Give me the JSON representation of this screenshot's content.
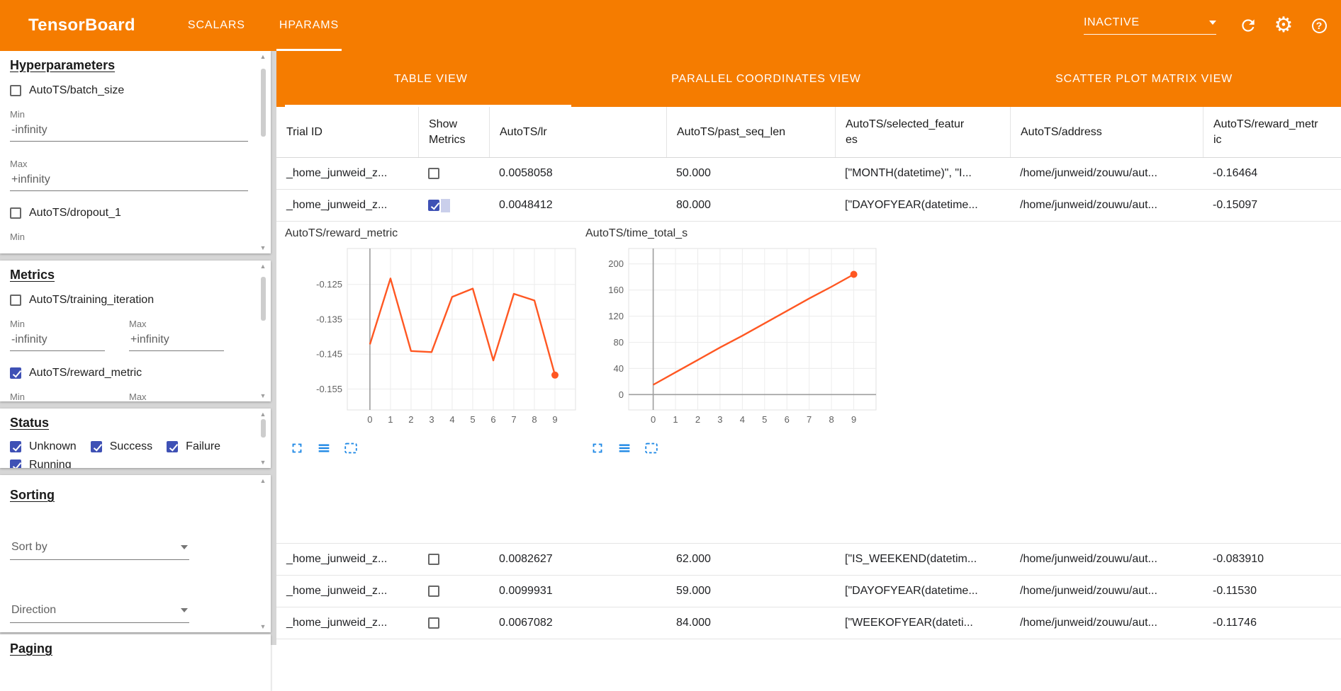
{
  "colors": {
    "accent_orange": "#f57c00",
    "chart_line": "#ff5722",
    "checkbox_checked": "#3f51b5",
    "toolbar_icon_blue": "#1e88e5"
  },
  "icons": {
    "settings": "⚙",
    "help": "?",
    "scroll_up": "▲",
    "scroll_down": "▼"
  },
  "header": {
    "title": "TensorBoard",
    "nav_tabs": [
      {
        "label": "SCALARS",
        "active": false
      },
      {
        "label": "HPARAMS",
        "active": true
      }
    ],
    "run_selector": "INACTIVE"
  },
  "sidebar": {
    "hyperparameters": {
      "heading": "Hyperparameters",
      "param1": {
        "label": "AutoTS/batch_size",
        "checked": false,
        "min_label": "Min",
        "min_value": "-infinity",
        "max_label": "Max",
        "max_value": "+infinity"
      },
      "param2": {
        "label": "AutoTS/dropout_1",
        "checked": false,
        "min_label": "Min"
      }
    },
    "metrics": {
      "heading": "Metrics",
      "metric1": {
        "label": "AutoTS/training_iteration",
        "checked": false,
        "min_label": "Min",
        "min_value": "-infinity",
        "max_label": "Max",
        "max_value": "+infinity"
      },
      "metric2": {
        "label": "AutoTS/reward_metric",
        "checked": true,
        "min_label": "Min",
        "max_label": "Max"
      }
    },
    "status": {
      "heading": "Status",
      "options": [
        {
          "label": "Unknown",
          "checked": true
        },
        {
          "label": "Success",
          "checked": true
        },
        {
          "label": "Failure",
          "checked": true
        },
        {
          "label": "Running",
          "checked": true
        }
      ]
    },
    "sorting": {
      "heading": "Sorting",
      "sort_by_placeholder": "Sort by",
      "direction_placeholder": "Direction"
    },
    "paging": {
      "heading": "Paging"
    }
  },
  "view_tabs": [
    {
      "label": "TABLE VIEW",
      "active": true
    },
    {
      "label": "PARALLEL COORDINATES VIEW",
      "active": false
    },
    {
      "label": "SCATTER PLOT MATRIX VIEW",
      "active": false
    }
  ],
  "table": {
    "columns": [
      "Trial ID",
      "Show Metrics",
      "AutoTS/lr",
      "AutoTS/past_seq_len",
      "AutoTS/selected_features",
      "AutoTS/address",
      "AutoTS/reward_metric"
    ],
    "rows": [
      {
        "trial_id": "_home_junweid_z...",
        "show_metrics": false,
        "lr": "0.0058058",
        "past_seq_len": "50.000",
        "selected_features": "[\"MONTH(datetime)\", \"I...",
        "address": "/home/junweid/zouwu/aut...",
        "reward_metric": "-0.16464"
      },
      {
        "trial_id": "_home_junweid_z...",
        "show_metrics": true,
        "lr": "0.0048412",
        "past_seq_len": "80.000",
        "selected_features": "[\"DAYOFYEAR(datetime...",
        "address": "/home/junweid/zouwu/aut...",
        "reward_metric": "-0.15097"
      },
      {
        "trial_id": "_home_junweid_z...",
        "show_metrics": false,
        "lr": "0.0082627",
        "past_seq_len": "62.000",
        "selected_features": "[\"IS_WEEKEND(datetim...",
        "address": "/home/junweid/zouwu/aut...",
        "reward_metric": "-0.083910"
      },
      {
        "trial_id": "_home_junweid_z...",
        "show_metrics": false,
        "lr": "0.0099931",
        "past_seq_len": "59.000",
        "selected_features": "[\"DAYOFYEAR(datetime...",
        "address": "/home/junweid/zouwu/aut...",
        "reward_metric": "-0.11530"
      },
      {
        "trial_id": "_home_junweid_z...",
        "show_metrics": false,
        "lr": "0.0067082",
        "past_seq_len": "84.000",
        "selected_features": "[\"WEEKOFYEAR(dateti...",
        "address": "/home/junweid/zouwu/aut...",
        "reward_metric": "-0.11746"
      }
    ]
  },
  "chart_toolbar": {
    "icons": [
      "expand-icon",
      "log-scale-icon",
      "fit-domain-icon"
    ]
  },
  "chart_data": [
    {
      "type": "line",
      "title": "AutoTS/reward_metric",
      "x": [
        0,
        1,
        2,
        3,
        4,
        5,
        6,
        7,
        8,
        9
      ],
      "values": [
        -0.1422,
        -0.1233,
        -0.1441,
        -0.1444,
        -0.1286,
        -0.1262,
        -0.1468,
        -0.1277,
        -0.1296,
        -0.151
      ],
      "xlim": [
        -1.1,
        10.0
      ],
      "ylim": [
        -0.161,
        -0.1147
      ],
      "xticks": [
        0,
        1,
        2,
        3,
        4,
        5,
        6,
        7,
        8,
        9
      ],
      "yticks": [
        -0.125,
        -0.135,
        -0.145,
        -0.155
      ],
      "ytick_labels": [
        "-0.125",
        "-0.135",
        "-0.145",
        "-0.155"
      ],
      "axis_v_at": 0,
      "axis_h_at": null,
      "line_color": "#ff5722",
      "endpoint_dot": true,
      "grid": true,
      "legend": "none"
    },
    {
      "type": "line",
      "title": "AutoTS/time_total_s",
      "x": [
        0,
        1,
        2,
        3,
        4,
        5,
        6,
        7,
        8,
        9
      ],
      "values": [
        15,
        34,
        53,
        72,
        90,
        109,
        128,
        147,
        165,
        184
      ],
      "xlim": [
        -1.1,
        10.0
      ],
      "ylim": [
        -23.5,
        223.5
      ],
      "xticks": [
        0,
        1,
        2,
        3,
        4,
        5,
        6,
        7,
        8,
        9
      ],
      "yticks": [
        0,
        40,
        80,
        120,
        160,
        200
      ],
      "ytick_labels": [
        "0",
        "40",
        "80",
        "120",
        "160",
        "200"
      ],
      "axis_v_at": 0,
      "axis_h_at": 0,
      "line_color": "#ff5722",
      "endpoint_dot": true,
      "grid": true,
      "legend": "none"
    }
  ]
}
